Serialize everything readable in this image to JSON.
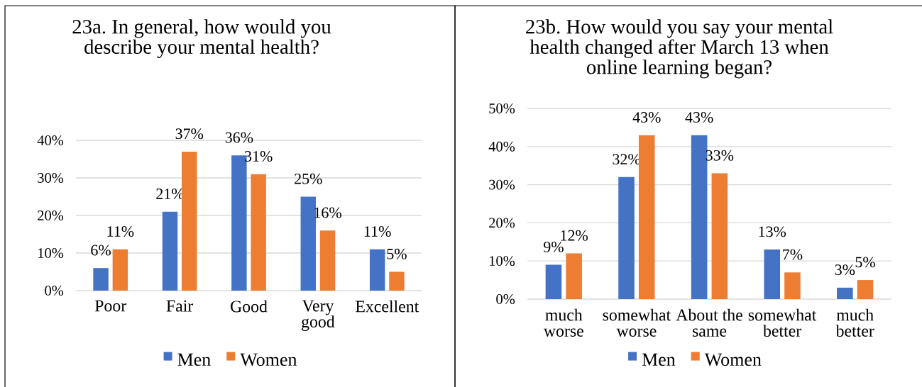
{
  "chart_data": [
    {
      "type": "bar",
      "title": "23a. In general, how would you describe your mental health?",
      "categories": [
        "Poor",
        "Fair",
        "Good",
        "Very good",
        "Excellent"
      ],
      "series": [
        {
          "name": "Men",
          "color": "#4472c4",
          "values": [
            6,
            21,
            36,
            25,
            11
          ],
          "value_labels": [
            "6%",
            "21%",
            "36%",
            "25%",
            "11%"
          ]
        },
        {
          "name": "Women",
          "color": "#ed7d31",
          "values": [
            11,
            37,
            31,
            16,
            5
          ],
          "value_labels": [
            "11%",
            "37%",
            "31%",
            "16%",
            "5%"
          ]
        }
      ],
      "ylim": [
        0,
        40
      ],
      "yticks": [
        {
          "value": 0,
          "label": "0%"
        },
        {
          "value": 10,
          "label": "10%"
        },
        {
          "value": 20,
          "label": "20%"
        },
        {
          "value": 30,
          "label": "30%"
        },
        {
          "value": 40,
          "label": "40%"
        }
      ],
      "grid": "y",
      "legend": "bottom"
    },
    {
      "type": "bar",
      "title": "23b. How would you say your mental health changed after March 13 when online learning began?",
      "categories": [
        "much worse",
        "somewhat worse",
        "About the same",
        "somewhat better",
        "much better"
      ],
      "series": [
        {
          "name": "Men",
          "color": "#4472c4",
          "values": [
            9,
            32,
            43,
            13,
            3
          ],
          "value_labels": [
            "9%",
            "32%",
            "43%",
            "13%",
            "3%"
          ]
        },
        {
          "name": "Women",
          "color": "#ed7d31",
          "values": [
            12,
            43,
            33,
            7,
            5
          ],
          "value_labels": [
            "12%",
            "43%",
            "33%",
            "7%",
            "5%"
          ]
        }
      ],
      "ylim": [
        0,
        50
      ],
      "yticks": [
        {
          "value": 0,
          "label": "0%"
        },
        {
          "value": 10,
          "label": "10%"
        },
        {
          "value": 20,
          "label": "20%"
        },
        {
          "value": 30,
          "label": "30%"
        },
        {
          "value": 40,
          "label": "40%"
        },
        {
          "value": 50,
          "label": "50%"
        }
      ],
      "grid": "y",
      "legend": "bottom"
    }
  ]
}
